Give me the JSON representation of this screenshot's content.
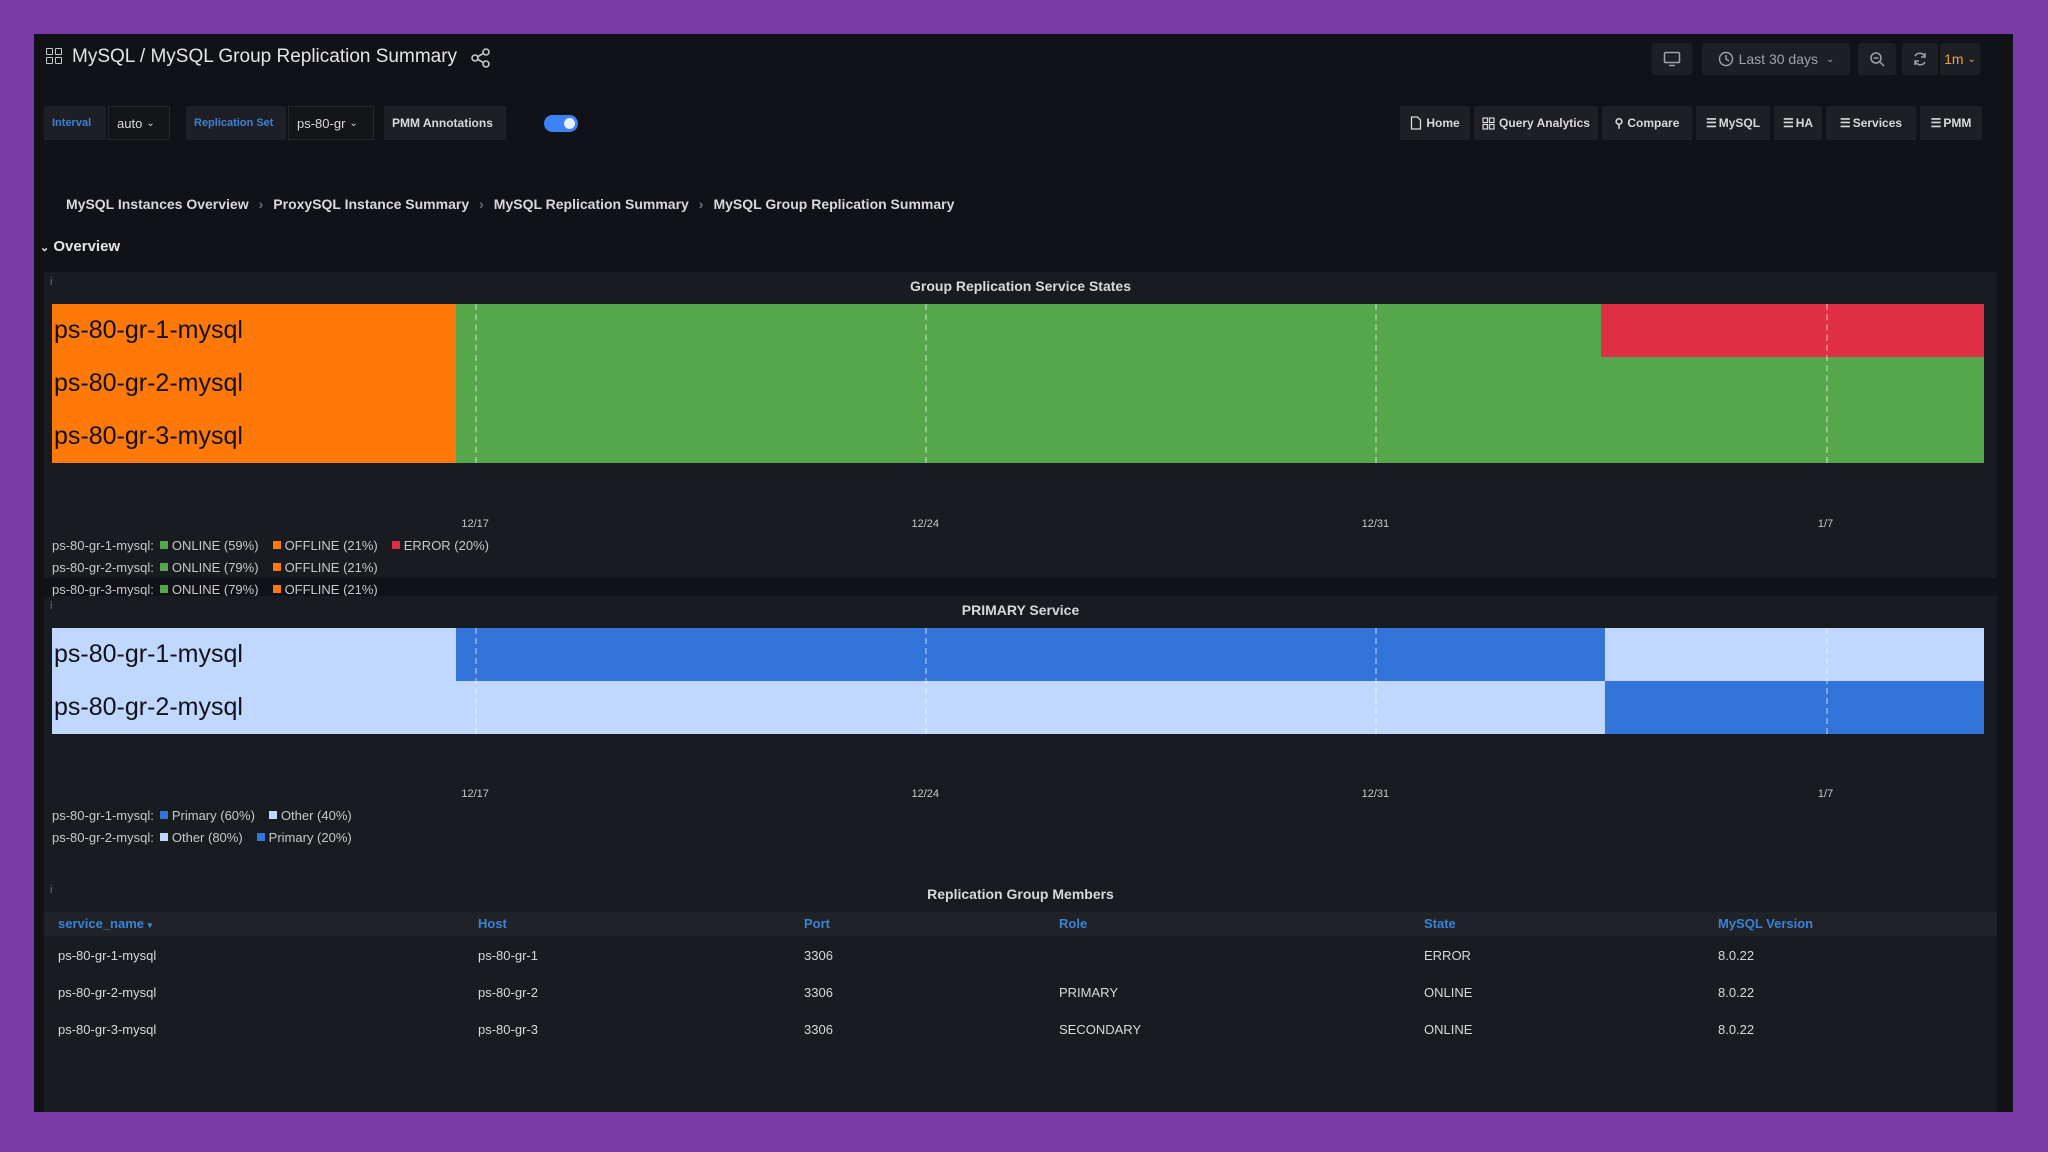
{
  "header": {
    "title": "MySQL / MySQL Group Replication Summary",
    "time_range": "Last 30 days",
    "refresh_interval": "1m"
  },
  "variables": {
    "interval_label": "Interval",
    "interval_value": "auto",
    "replication_set_label": "Replication Set",
    "replication_set_value": "ps-80-gr",
    "annotations_label": "PMM Annotations"
  },
  "nav_links": [
    "Home",
    "Query Analytics",
    "Compare",
    "MySQL",
    "HA",
    "Services",
    "PMM"
  ],
  "breadcrumb": [
    "MySQL Instances Overview",
    "ProxySQL Instance Summary",
    "MySQL Replication Summary",
    "MySQL Group Replication Summary"
  ],
  "row_title": "Overview",
  "colors": {
    "online": "#56a64b",
    "offline": "#ff780a",
    "error": "#e02f44",
    "primary": "#3274d9",
    "other": "#c0d8ff"
  },
  "service_states": {
    "title": "Group Replication Service States",
    "ticks": [
      "12/17",
      "12/24",
      "12/31",
      "1/7"
    ],
    "rows": [
      {
        "name": "ps-80-gr-1-mysql",
        "segments": [
          {
            "state": "OFFLINE",
            "from": 0,
            "to": 0.209
          },
          {
            "state": "ONLINE",
            "from": 0.209,
            "to": 0.802
          },
          {
            "state": "ERROR",
            "from": 0.802,
            "to": 1
          }
        ]
      },
      {
        "name": "ps-80-gr-2-mysql",
        "segments": [
          {
            "state": "OFFLINE",
            "from": 0,
            "to": 0.209
          },
          {
            "state": "ONLINE",
            "from": 0.209,
            "to": 1
          }
        ]
      },
      {
        "name": "ps-80-gr-3-mysql",
        "segments": [
          {
            "state": "OFFLINE",
            "from": 0,
            "to": 0.209
          },
          {
            "state": "ONLINE",
            "from": 0.209,
            "to": 1
          }
        ]
      }
    ],
    "legend": [
      {
        "series": "ps-80-gr-1-mysql:",
        "items": [
          {
            "label": "ONLINE (59%)",
            "state": "ONLINE"
          },
          {
            "label": "OFFLINE (21%)",
            "state": "OFFLINE"
          },
          {
            "label": "ERROR (20%)",
            "state": "ERROR"
          }
        ]
      },
      {
        "series": "ps-80-gr-2-mysql:",
        "items": [
          {
            "label": "ONLINE (79%)",
            "state": "ONLINE"
          },
          {
            "label": "OFFLINE (21%)",
            "state": "OFFLINE"
          }
        ]
      },
      {
        "series": "ps-80-gr-3-mysql:",
        "items": [
          {
            "label": "ONLINE (79%)",
            "state": "ONLINE"
          },
          {
            "label": "OFFLINE (21%)",
            "state": "OFFLINE"
          }
        ]
      }
    ]
  },
  "primary_service": {
    "title": "PRIMARY Service",
    "ticks": [
      "12/17",
      "12/24",
      "12/31",
      "1/7"
    ],
    "rows": [
      {
        "name": "ps-80-gr-1-mysql",
        "segments": [
          {
            "state": "Other",
            "from": 0,
            "to": 0.209
          },
          {
            "state": "Primary",
            "from": 0.209,
            "to": 0.804
          },
          {
            "state": "Other",
            "from": 0.804,
            "to": 1
          }
        ]
      },
      {
        "name": "ps-80-gr-2-mysql",
        "segments": [
          {
            "state": "Other",
            "from": 0,
            "to": 0.804
          },
          {
            "state": "Primary",
            "from": 0.804,
            "to": 1
          }
        ]
      }
    ],
    "legend": [
      {
        "series": "ps-80-gr-1-mysql:",
        "items": [
          {
            "label": "Primary (60%)",
            "state": "Primary"
          },
          {
            "label": "Other (40%)",
            "state": "Other"
          }
        ]
      },
      {
        "series": "ps-80-gr-2-mysql:",
        "items": [
          {
            "label": "Other (80%)",
            "state": "Other"
          },
          {
            "label": "Primary (20%)",
            "state": "Primary"
          }
        ]
      }
    ]
  },
  "members_table": {
    "title": "Replication Group Members",
    "columns": [
      "service_name",
      "Host",
      "Port",
      "Role",
      "State",
      "MySQL Version"
    ],
    "rows": [
      [
        "ps-80-gr-1-mysql",
        "ps-80-gr-1",
        "3306",
        "",
        "ERROR",
        "8.0.22"
      ],
      [
        "ps-80-gr-2-mysql",
        "ps-80-gr-2",
        "3306",
        "PRIMARY",
        "ONLINE",
        "8.0.22"
      ],
      [
        "ps-80-gr-3-mysql",
        "ps-80-gr-3",
        "3306",
        "SECONDARY",
        "ONLINE",
        "8.0.22"
      ]
    ]
  }
}
